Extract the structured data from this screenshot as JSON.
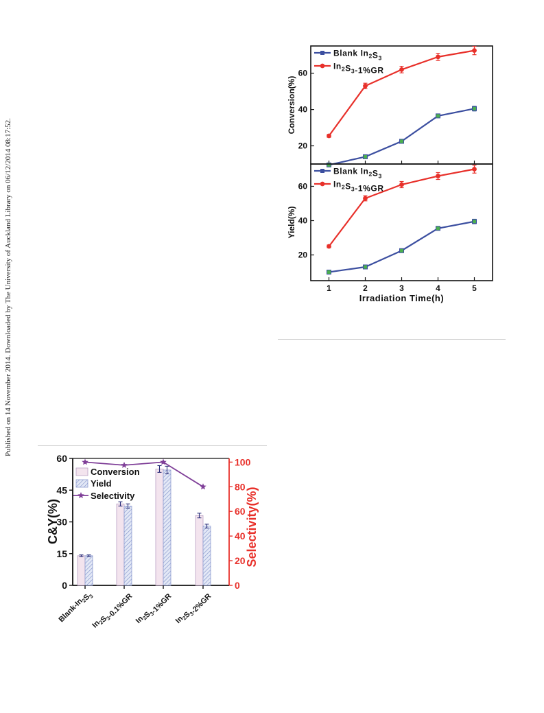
{
  "sidebar_note": "Published on 14 November 2014. Downloaded by The University of Auckland Library on 06/12/2014 08:17:52.",
  "colors": {
    "blue": "#3c4fa0",
    "red": "#e8302a",
    "green": "#4caf50",
    "purple": "#7f3f98",
    "bar_pink": "#f3e4ee",
    "bar_blue": "#c7d1ec"
  },
  "chart_data": [
    {
      "type": "line",
      "x": [
        1,
        2,
        3,
        4,
        5
      ],
      "xlim": [
        0.5,
        5.5
      ],
      "ylim": [
        10,
        75
      ],
      "yticks": [
        20,
        40,
        60
      ],
      "ylabel": "Conversion(%)",
      "series": [
        {
          "name": "Blank In2S3",
          "color": "#3c4fa0",
          "marker": "square",
          "values": [
            9.5,
            14,
            22.5,
            36.5,
            40.5
          ],
          "errors": [
            0.5,
            0.6,
            0.7,
            1.0,
            1.3
          ]
        },
        {
          "name": "In2S3-1%GR",
          "color": "#e8302a",
          "marker": "circle",
          "values": [
            25.5,
            53,
            62,
            69,
            72.5
          ],
          "errors": [
            0.8,
            1.5,
            1.8,
            2.0,
            2.3
          ]
        }
      ],
      "legend_position": "top-left"
    },
    {
      "type": "line",
      "x": [
        1,
        2,
        3,
        4,
        5
      ],
      "xticks": [
        "1",
        "2",
        "3",
        "4",
        "5"
      ],
      "xlabel": "Irradiation Time(h)",
      "xlim": [
        0.5,
        5.5
      ],
      "ylim": [
        5,
        73
      ],
      "yticks": [
        20,
        40,
        60
      ],
      "ylabel": "Yield(%)",
      "series": [
        {
          "name": "Blank In2S3",
          "color": "#3c4fa0",
          "marker": "square",
          "values": [
            10,
            13,
            22.5,
            35.5,
            39.5
          ],
          "errors": [
            0.5,
            0.6,
            0.7,
            1.0,
            1.3
          ]
        },
        {
          "name": "In2S3-1%GR",
          "color": "#e8302a",
          "marker": "circle",
          "values": [
            25,
            53,
            61,
            66,
            70
          ],
          "errors": [
            0.8,
            1.5,
            1.8,
            2.0,
            2.3
          ]
        }
      ],
      "legend_position": "top-left"
    },
    {
      "type": "bar",
      "categories": [
        "Blank-In2S3",
        "In2S3-0.1%GR",
        "In2S3-1%GR",
        "In2S3-2%GR"
      ],
      "ylabel": "C&Y(%)",
      "ylim": [
        0,
        60
      ],
      "yticks": [
        "0",
        "15",
        "30",
        "45",
        "60"
      ],
      "y2label": "Selectivity(%)",
      "y2lim": [
        0,
        103
      ],
      "y2ticks": [
        "0",
        "20",
        "40",
        "60",
        "80",
        "100"
      ],
      "series": [
        {
          "name": "Conversion",
          "pattern": "plain",
          "values": [
            14,
            38.5,
            55,
            33
          ],
          "errors": [
            0.4,
            1.0,
            1.6,
            1.1
          ]
        },
        {
          "name": "Yield",
          "pattern": "hatched",
          "values": [
            14,
            37.5,
            54.5,
            28
          ],
          "errors": [
            0.4,
            1.0,
            1.8,
            0.9
          ]
        },
        {
          "name": "Selectivity",
          "type": "line",
          "axis": "right",
          "marker": "star",
          "values": [
            100,
            97.5,
            100,
            80
          ]
        }
      ],
      "legend_position": "top-left"
    }
  ]
}
